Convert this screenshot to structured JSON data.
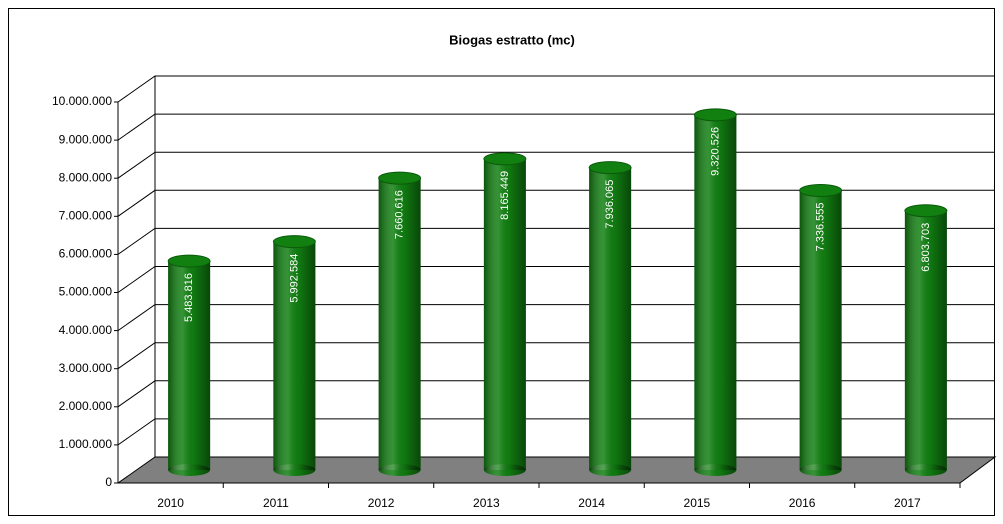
{
  "chart_data": {
    "type": "bar",
    "title": "Biogas estratto (mc)",
    "categories": [
      "2010",
      "2011",
      "2012",
      "2013",
      "2014",
      "2015",
      "2016",
      "2017"
    ],
    "values": [
      5483816,
      5992584,
      7660616,
      8165449,
      7936065,
      9320526,
      7336555,
      6803703
    ],
    "value_labels": [
      "5.483.816",
      "5.992.584",
      "7.660.616",
      "8.165.449",
      "7.936.065",
      "9.320.526",
      "7.336.555",
      "6.803.703"
    ],
    "color": "#118011",
    "ylim": [
      0,
      10000000
    ],
    "yticks": [
      0,
      {
        "value": 1000000,
        "label": "1.000.000"
      },
      {
        "value": 2000000,
        "label": "2.000.000"
      },
      {
        "value": 3000000,
        "label": "3.000.000"
      },
      {
        "value": 4000000,
        "label": "4.000.000"
      },
      {
        "value": 5000000,
        "label": "5.000.000"
      },
      {
        "value": 6000000,
        "label": "6.000.000"
      },
      {
        "value": 7000000,
        "label": "7.000.000"
      },
      {
        "value": 8000000,
        "label": "8.000.000"
      },
      {
        "value": 9000000,
        "label": "9.000.000"
      },
      {
        "value": 10000000,
        "label": "10.000.000"
      }
    ],
    "grid": true
  }
}
